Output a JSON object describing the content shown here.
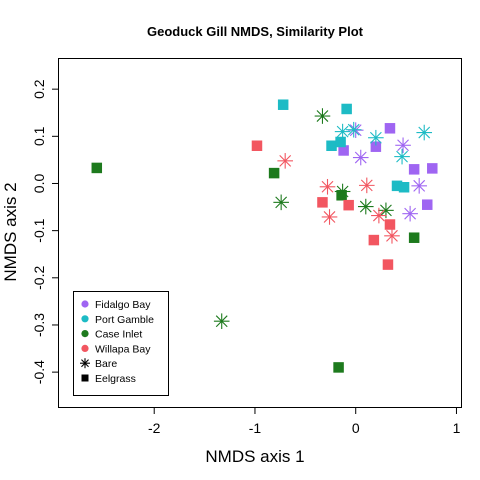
{
  "chart_data": {
    "type": "scatter",
    "title": "Geoduck Gill NMDS, Similarity Plot",
    "xlabel": "NMDS axis 1",
    "ylabel": "NMDS axis 2",
    "xlim": [
      -2.95,
      1.05
    ],
    "ylim": [
      -0.475,
      0.265
    ],
    "xticks": [
      -2,
      -1,
      0,
      1
    ],
    "yticks": [
      -0.4,
      -0.3,
      -0.2,
      -0.1,
      0.0,
      0.1,
      0.2
    ],
    "x_tick_labels": [
      "-2",
      "-1",
      "0",
      "1"
    ],
    "y_tick_labels": [
      "-0.4",
      "-0.3",
      "-0.2",
      "-0.1",
      "0.0",
      "0.1",
      "0.2"
    ],
    "grid": false,
    "legend_position": "bottom-left",
    "legend": [
      {
        "label": "Fidalgo Bay",
        "kind": "color",
        "color": "#9F65F2"
      },
      {
        "label": "Port Gamble",
        "kind": "color",
        "color": "#1DBBC5"
      },
      {
        "label": "Case Inlet",
        "kind": "color",
        "color": "#1D7A1D"
      },
      {
        "label": "Willapa Bay",
        "kind": "color",
        "color": "#F25660"
      },
      {
        "label": "Bare",
        "kind": "shape",
        "shape": "star"
      },
      {
        "label": "Eelgrass",
        "kind": "shape",
        "shape": "square"
      }
    ],
    "groups": [
      {
        "site": "Fidalgo Bay",
        "color": "#9F65F2",
        "points": [
          {
            "x": -0.12,
            "y": 0.07,
            "shape": "square"
          },
          {
            "x": 0.34,
            "y": 0.117,
            "shape": "square"
          },
          {
            "x": 0.2,
            "y": 0.078,
            "shape": "square"
          },
          {
            "x": 0.58,
            "y": 0.03,
            "shape": "square"
          },
          {
            "x": 0.76,
            "y": 0.032,
            "shape": "square"
          },
          {
            "x": 0.71,
            "y": -0.045,
            "shape": "square"
          },
          {
            "x": 0.0,
            "y": 0.113,
            "shape": "star"
          },
          {
            "x": 0.05,
            "y": 0.055,
            "shape": "star"
          },
          {
            "x": 0.47,
            "y": 0.081,
            "shape": "star"
          },
          {
            "x": 0.63,
            "y": -0.005,
            "shape": "star"
          },
          {
            "x": 0.54,
            "y": -0.064,
            "shape": "star"
          }
        ]
      },
      {
        "site": "Port Gamble",
        "color": "#1DBBC5",
        "points": [
          {
            "x": -0.72,
            "y": 0.167,
            "shape": "square"
          },
          {
            "x": -0.09,
            "y": 0.158,
            "shape": "square"
          },
          {
            "x": -0.24,
            "y": 0.08,
            "shape": "square"
          },
          {
            "x": -0.15,
            "y": 0.088,
            "shape": "square"
          },
          {
            "x": 0.41,
            "y": -0.005,
            "shape": "square"
          },
          {
            "x": 0.48,
            "y": -0.008,
            "shape": "square"
          },
          {
            "x": -0.13,
            "y": 0.11,
            "shape": "star"
          },
          {
            "x": -0.02,
            "y": 0.114,
            "shape": "star"
          },
          {
            "x": 0.2,
            "y": 0.097,
            "shape": "star"
          },
          {
            "x": 0.46,
            "y": 0.057,
            "shape": "star"
          },
          {
            "x": 0.68,
            "y": 0.108,
            "shape": "star"
          }
        ]
      },
      {
        "site": "Case Inlet",
        "color": "#1D7A1D",
        "points": [
          {
            "x": -2.57,
            "y": 0.033,
            "shape": "square"
          },
          {
            "x": -0.81,
            "y": 0.022,
            "shape": "square"
          },
          {
            "x": -0.14,
            "y": -0.025,
            "shape": "square"
          },
          {
            "x": 0.58,
            "y": -0.115,
            "shape": "square"
          },
          {
            "x": -0.17,
            "y": -0.39,
            "shape": "square"
          },
          {
            "x": -1.33,
            "y": -0.292,
            "shape": "star"
          },
          {
            "x": -0.74,
            "y": -0.04,
            "shape": "star"
          },
          {
            "x": -0.33,
            "y": 0.143,
            "shape": "star"
          },
          {
            "x": -0.13,
            "y": -0.017,
            "shape": "star"
          },
          {
            "x": 0.1,
            "y": -0.049,
            "shape": "star"
          },
          {
            "x": 0.3,
            "y": -0.057,
            "shape": "star"
          }
        ]
      },
      {
        "site": "Willapa Bay",
        "color": "#F25660",
        "points": [
          {
            "x": -0.98,
            "y": 0.08,
            "shape": "square"
          },
          {
            "x": -0.33,
            "y": -0.04,
            "shape": "square"
          },
          {
            "x": -0.07,
            "y": -0.046,
            "shape": "square"
          },
          {
            "x": 0.34,
            "y": -0.087,
            "shape": "square"
          },
          {
            "x": 0.18,
            "y": -0.12,
            "shape": "square"
          },
          {
            "x": 0.32,
            "y": -0.172,
            "shape": "square"
          },
          {
            "x": -0.7,
            "y": 0.048,
            "shape": "star"
          },
          {
            "x": -0.28,
            "y": -0.007,
            "shape": "star"
          },
          {
            "x": -0.26,
            "y": -0.071,
            "shape": "star"
          },
          {
            "x": 0.11,
            "y": -0.004,
            "shape": "star"
          },
          {
            "x": 0.23,
            "y": -0.068,
            "shape": "star"
          },
          {
            "x": 0.36,
            "y": -0.111,
            "shape": "star"
          }
        ]
      }
    ]
  }
}
